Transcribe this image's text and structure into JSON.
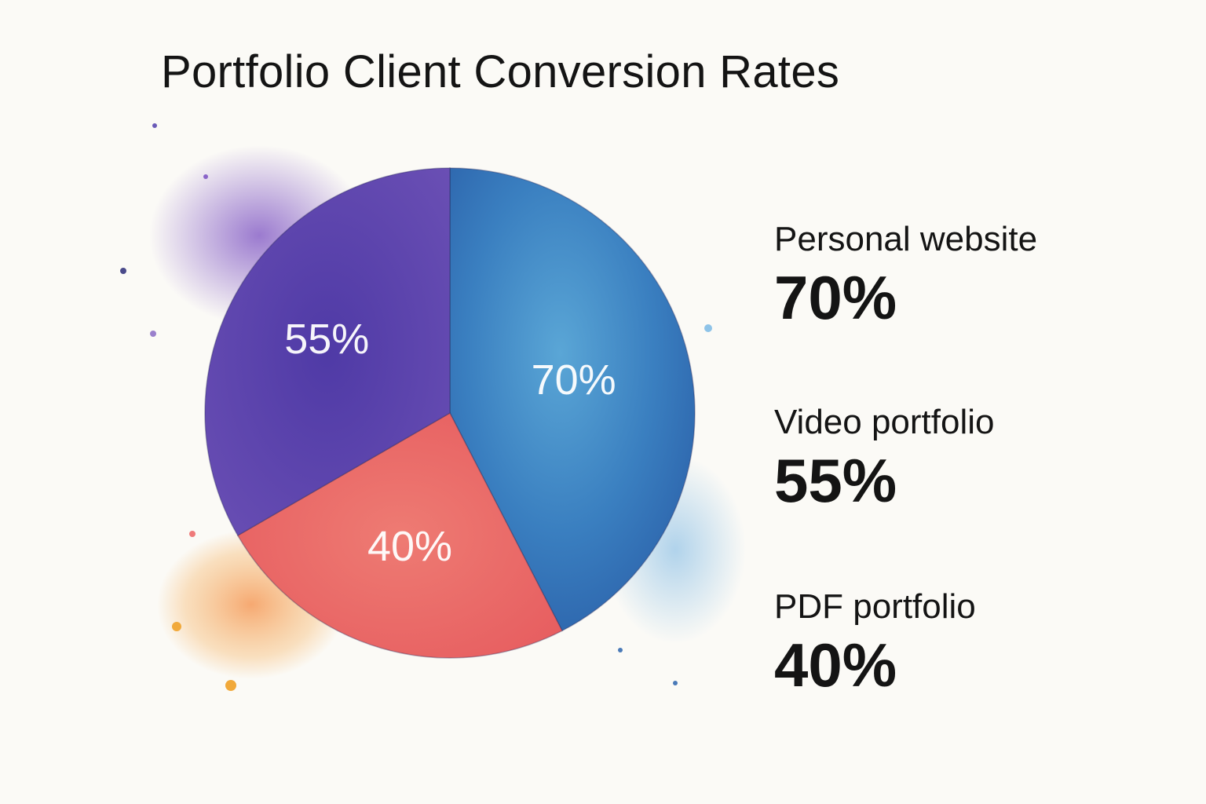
{
  "chart_data": {
    "type": "pie",
    "title": "Portfolio Client Conversion Rates",
    "slices": [
      {
        "label": "Personal website",
        "value": 70,
        "display": "70%",
        "color": "#2f74b8"
      },
      {
        "label": "PDF portfolio",
        "value": 40,
        "display": "40%",
        "color": "#ea6a66"
      },
      {
        "label": "Video portfolio",
        "value": 55,
        "display": "55%",
        "color": "#5b46a8"
      }
    ],
    "legend_placement": "right"
  },
  "legend": [
    {
      "name": "Personal website",
      "value": "70%"
    },
    {
      "name": "Video portfolio",
      "value": "55%"
    },
    {
      "name": "PDF portfolio",
      "value": "40%"
    }
  ]
}
